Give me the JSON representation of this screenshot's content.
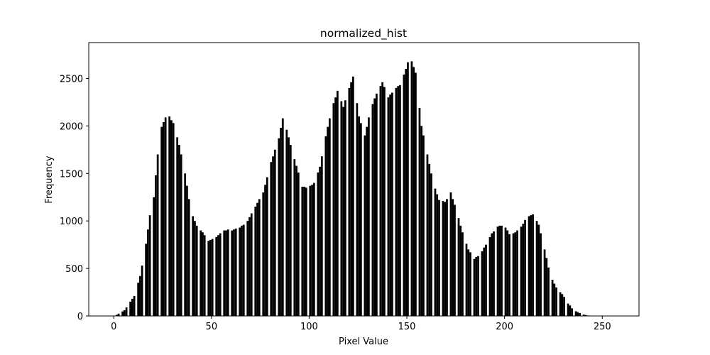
{
  "chart_data": {
    "type": "histogram",
    "title": "normalized_hist",
    "x_label": "Pixel Value",
    "y_label": "Frequency",
    "color": "#000000",
    "bins": [
      0,
      1,
      2,
      3,
      4,
      5,
      6,
      7,
      8,
      9,
      10,
      11,
      12,
      13,
      14,
      15,
      16,
      17,
      18,
      19,
      20,
      21,
      22,
      23,
      24,
      25,
      26,
      27,
      28,
      29,
      30,
      31,
      32,
      33,
      34,
      35,
      36,
      37,
      38,
      39,
      40,
      41,
      42,
      43,
      44,
      45,
      46,
      47,
      48,
      49,
      50,
      51,
      52,
      53,
      54,
      55,
      56,
      57,
      58,
      59,
      60,
      61,
      62,
      63,
      64,
      65,
      66,
      67,
      68,
      69,
      70,
      71,
      72,
      73,
      74,
      75,
      76,
      77,
      78,
      79,
      80,
      81,
      82,
      83,
      84,
      85,
      86,
      87,
      88,
      89,
      90,
      91,
      92,
      93,
      94,
      95,
      96,
      97,
      98,
      99,
      100,
      101,
      102,
      103,
      104,
      105,
      106,
      107,
      108,
      109,
      110,
      111,
      112,
      113,
      114,
      115,
      116,
      117,
      118,
      119,
      120,
      121,
      122,
      123,
      124,
      125,
      126,
      127,
      128,
      129,
      130,
      131,
      132,
      133,
      134,
      135,
      136,
      137,
      138,
      139,
      140,
      141,
      142,
      143,
      144,
      145,
      146,
      147,
      148,
      149,
      150,
      151,
      152,
      153,
      154,
      155,
      156,
      157,
      158,
      159,
      160,
      161,
      162,
      163,
      164,
      165,
      166,
      167,
      168,
      169,
      170,
      171,
      172,
      173,
      174,
      175,
      176,
      177,
      178,
      179,
      180,
      181,
      182,
      183,
      184,
      185,
      186,
      187,
      188,
      189,
      190,
      191,
      192,
      193,
      194,
      195,
      196,
      197,
      198,
      199,
      200,
      201,
      202,
      203,
      204,
      205,
      206,
      207,
      208,
      209,
      210,
      211,
      212,
      213,
      214,
      215,
      216,
      217,
      218,
      219,
      220,
      221,
      222,
      223,
      224,
      225,
      226,
      227,
      228,
      229,
      230,
      231,
      232,
      233,
      234,
      235,
      236,
      237,
      238,
      239,
      240,
      241,
      242,
      243,
      244,
      245,
      246,
      247,
      248,
      249,
      250,
      251,
      252,
      253,
      254,
      255,
      256
    ],
    "values": [
      0,
      12,
      24,
      0,
      48,
      60,
      90,
      0,
      150,
      180,
      210,
      0,
      350,
      420,
      530,
      0,
      760,
      910,
      1060,
      0,
      1250,
      1480,
      1700,
      0,
      1990,
      2040,
      2090,
      0,
      2100,
      2060,
      2030,
      0,
      1880,
      1800,
      1700,
      0,
      1500,
      1370,
      1230,
      0,
      1050,
      1000,
      950,
      0,
      900,
      880,
      850,
      0,
      790,
      800,
      810,
      0,
      830,
      850,
      870,
      0,
      900,
      900,
      910,
      0,
      900,
      910,
      920,
      0,
      930,
      950,
      960,
      0,
      1000,
      1040,
      1080,
      0,
      1150,
      1190,
      1230,
      0,
      1300,
      1380,
      1460,
      0,
      1620,
      1680,
      1750,
      0,
      1870,
      1980,
      2080,
      0,
      1960,
      1880,
      1800,
      0,
      1650,
      1580,
      1510,
      0,
      1360,
      1360,
      1350,
      0,
      1370,
      1380,
      1400,
      0,
      1510,
      1570,
      1680,
      0,
      1890,
      1990,
      2080,
      0,
      2240,
      2300,
      2370,
      0,
      2260,
      2200,
      2270,
      0,
      2400,
      2460,
      2520,
      0,
      2240,
      2100,
      2030,
      0,
      1900,
      1990,
      2090,
      0,
      2230,
      2290,
      2340,
      0,
      2420,
      2460,
      2410,
      0,
      2300,
      2330,
      2350,
      0,
      2400,
      2420,
      2430,
      0,
      2540,
      2600,
      2670,
      0,
      2680,
      2620,
      2560,
      0,
      2190,
      2000,
      1900,
      0,
      1700,
      1600,
      1500,
      0,
      1340,
      1280,
      1220,
      0,
      1210,
      1200,
      1230,
      0,
      1300,
      1230,
      1170,
      0,
      1030,
      950,
      880,
      0,
      760,
      700,
      670,
      0,
      600,
      620,
      630,
      0,
      680,
      720,
      750,
      0,
      830,
      870,
      890,
      0,
      940,
      950,
      950,
      0,
      930,
      900,
      860,
      0,
      870,
      880,
      900,
      0,
      940,
      970,
      1010,
      0,
      1050,
      1060,
      1070,
      0,
      1000,
      960,
      870,
      0,
      700,
      610,
      510,
      0,
      380,
      340,
      300,
      0,
      250,
      230,
      200,
      0,
      130,
      110,
      80,
      0,
      50,
      40,
      30,
      0,
      15,
      10,
      5,
      0,
      0,
      0,
      0,
      0,
      0,
      0,
      0,
      0,
      0,
      0,
      0,
      0
    ],
    "xlim": [
      -12.8,
      268.8
    ],
    "xticks": [
      0,
      50,
      100,
      150,
      200,
      250
    ],
    "ylim": [
      0,
      2877
    ],
    "yticks": [
      0,
      500,
      1000,
      1500,
      2000,
      2500
    ],
    "grid": false
  }
}
